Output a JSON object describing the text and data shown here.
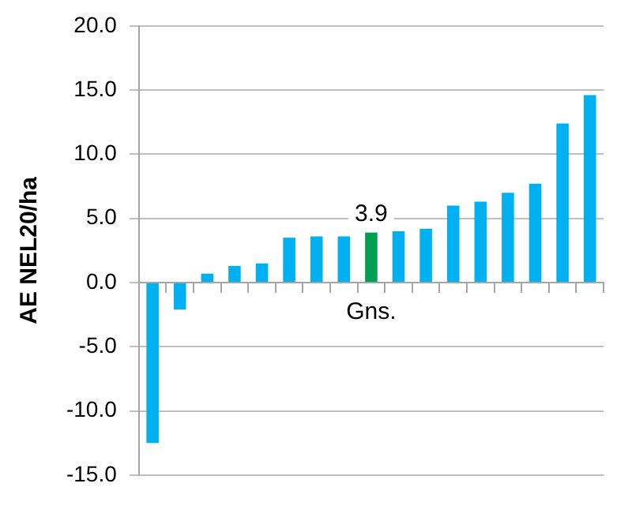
{
  "chart_data": {
    "type": "bar",
    "ylabel": "AE NEL20/ha",
    "categories": [
      null,
      null,
      null,
      null,
      null,
      null,
      null,
      null,
      "Gns.",
      null,
      null,
      null,
      null,
      null,
      null,
      null,
      null
    ],
    "values": [
      -12.5,
      -2.1,
      0.7,
      1.3,
      1.5,
      3.5,
      3.6,
      3.6,
      3.9,
      4.0,
      4.2,
      6.0,
      6.3,
      7.0,
      7.7,
      12.4,
      14.6
    ],
    "colors": [
      "#00b0f0",
      "#00b0f0",
      "#00b0f0",
      "#00b0f0",
      "#00b0f0",
      "#00b0f0",
      "#00b0f0",
      "#00b0f0",
      "#00a050",
      "#00b0f0",
      "#00b0f0",
      "#00b0f0",
      "#00b0f0",
      "#00b0f0",
      "#00b0f0",
      "#00b0f0",
      "#00b0f0"
    ],
    "value_labels": [
      null,
      null,
      null,
      null,
      null,
      null,
      null,
      null,
      "3.9",
      null,
      null,
      null,
      null,
      null,
      null,
      null,
      null
    ],
    "ylim": [
      -15,
      20
    ],
    "yticks": [
      {
        "value": -15,
        "label": "-15.0"
      },
      {
        "value": -10,
        "label": "-10.0"
      },
      {
        "value": -5,
        "label": "-5.0"
      },
      {
        "value": 0,
        "label": "0.0"
      },
      {
        "value": 5,
        "label": "5.0"
      },
      {
        "value": 10,
        "label": "10.0"
      },
      {
        "value": 15,
        "label": "15.0"
      },
      {
        "value": 20,
        "label": "20.0"
      }
    ],
    "grid": "y",
    "legend": false
  }
}
